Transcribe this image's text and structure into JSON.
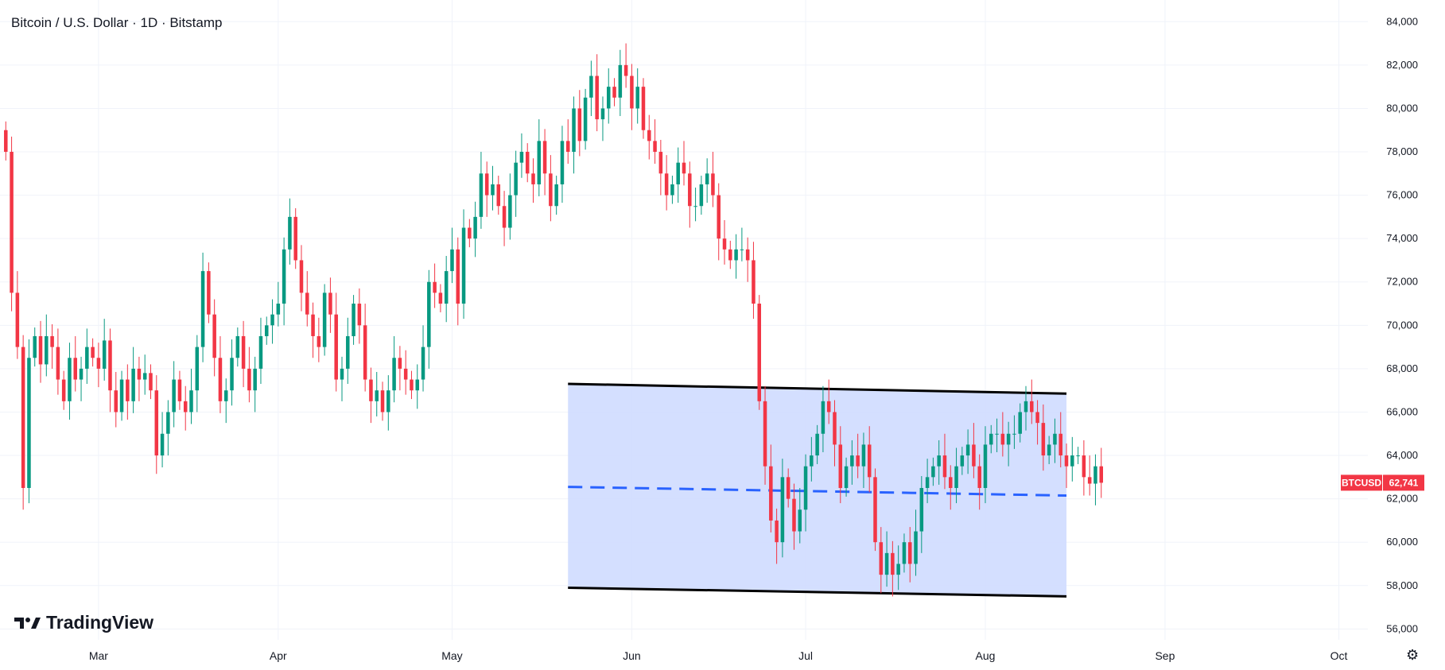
{
  "header": {
    "title": "Bitcoin / U.S. Dollar · 1D · Bitstamp"
  },
  "branding": {
    "name": "TradingView"
  },
  "colors": {
    "up": "#089981",
    "down": "#f23645",
    "channel_fill": "#cfdcff",
    "channel_edge": "#000000",
    "midline": "#2962ff",
    "grid": "#f0f3fa"
  },
  "chart_data": {
    "type": "candlestick",
    "title": "Bitcoin / U.S. Dollar · 1D · Bitstamp",
    "ylim": [
      55500,
      85000
    ],
    "y_ticks": [
      84000,
      82000,
      80000,
      78000,
      76000,
      74000,
      72000,
      70000,
      68000,
      66000,
      64000,
      62000,
      60000,
      58000,
      56000
    ],
    "y_tick_labels": [
      "84,000",
      "82,000",
      "80,000",
      "78,000",
      "76,000",
      "74,000",
      "72,000",
      "70,000",
      "68,000",
      "66,000",
      "64,000",
      "62,000",
      "60,000",
      "58,000",
      "56,000"
    ],
    "x_range": [
      "2024-02-13",
      "2024-10-06"
    ],
    "x_ticks": [
      {
        "date": "2024-03-01",
        "label": "Mar"
      },
      {
        "date": "2024-04-01",
        "label": "Apr"
      },
      {
        "date": "2024-05-01",
        "label": "May"
      },
      {
        "date": "2024-06-01",
        "label": "Jun"
      },
      {
        "date": "2024-07-01",
        "label": "Jul"
      },
      {
        "date": "2024-08-01",
        "label": "Aug"
      },
      {
        "date": "2024-09-01",
        "label": "Sep"
      },
      {
        "date": "2024-10-01",
        "label": "Oct"
      }
    ],
    "start_date": "2024-02-14",
    "closes": [
      78000,
      71500,
      69000,
      62500,
      68500,
      69500,
      68200,
      69500,
      69000,
      67500,
      66500,
      68500,
      67500,
      68000,
      69000,
      68500,
      68000,
      69300,
      67000,
      66000,
      67500,
      66500,
      68000,
      67500,
      67800,
      67000,
      64000,
      65000,
      66000,
      67500,
      66500,
      66000,
      67000,
      69000,
      72500,
      70500,
      68500,
      66500,
      67000,
      68500,
      69500,
      68000,
      67000,
      68000,
      69500,
      70000,
      70500,
      71000,
      73500,
      75000,
      73000,
      71500,
      70500,
      69500,
      69000,
      71500,
      70500,
      67500,
      68000,
      69500,
      71000,
      70000,
      67500,
      66500,
      67000,
      66000,
      67000,
      68500,
      68000,
      67500,
      67000,
      67500,
      69000,
      72000,
      71500,
      71000,
      72500,
      73500,
      71000,
      74500,
      74000,
      75000,
      77000,
      76000,
      76500,
      75500,
      74500,
      76000,
      77500,
      78000,
      77000,
      76500,
      78500,
      77000,
      75500,
      76500,
      78500,
      78000,
      80000,
      78500,
      80500,
      81500,
      79500,
      80000,
      81000,
      80500,
      82000,
      81500,
      80000,
      81000,
      79000,
      78500,
      78000,
      77000,
      76000,
      76500,
      77500,
      77000,
      75500,
      75500,
      76500,
      77000,
      76000,
      74000,
      73500,
      73000,
      73500,
      73500,
      73000,
      71000,
      66500,
      63500,
      61000,
      60000,
      63000,
      62000,
      60500,
      61500,
      63500,
      64000,
      65000,
      66500,
      66000,
      64500,
      62500,
      63500,
      64000,
      63500,
      64500,
      63000,
      60000,
      58500,
      59500,
      58500,
      59000,
      60000,
      59000,
      60500,
      62500,
      63000,
      63500,
      64000,
      63000,
      62500,
      63500,
      64000,
      64500,
      63500,
      62500,
      64500,
      65000,
      65000,
      64500,
      65000,
      65000,
      66000,
      66500,
      66000,
      65500,
      64000,
      64500,
      65000,
      64000,
      63500,
      64000,
      64000,
      63000,
      62700,
      63500,
      62741
    ],
    "channel": {
      "start_date": "2024-05-21",
      "end_date": "2024-08-15",
      "top": [
        67300,
        66850
      ],
      "bottom": [
        57900,
        57500
      ],
      "mid": [
        62550,
        62150
      ]
    },
    "last_price": {
      "symbol": "BTCUSD",
      "value": 62741,
      "label": "62,741"
    }
  }
}
